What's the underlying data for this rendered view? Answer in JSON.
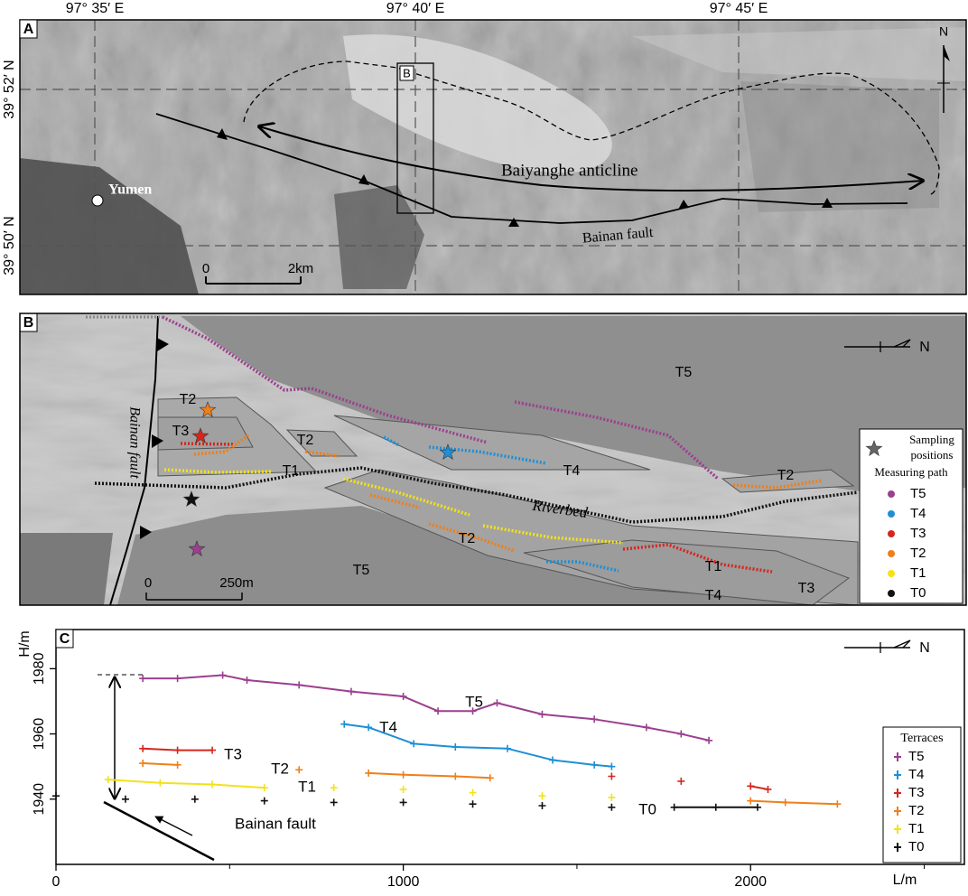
{
  "panel_a": {
    "label": "A",
    "lon_labels": [
      "97° 35′ E",
      "97° 40′ E",
      "97° 45′ E"
    ],
    "lat_labels": [
      "39° 52′ N",
      "39° 50′ N"
    ],
    "place": "Yumen",
    "box_label": "B",
    "anticline": "Baiyanghe anticline",
    "fault": "Bainan fault",
    "scale_labels": [
      "0",
      "2km"
    ],
    "north": "N"
  },
  "panel_b": {
    "label": "B",
    "fault": "Bainan fault",
    "riverbed": "Riverbed",
    "terrace_labels": [
      "T5",
      "T2",
      "T3",
      "T1",
      "T2",
      "T4",
      "T2",
      "T2",
      "T1",
      "T5",
      "T4",
      "T3"
    ],
    "scale_labels": [
      "0",
      "250m"
    ],
    "north": "N",
    "legend": {
      "sampling": [
        "Sampling",
        "positions"
      ],
      "measuring": "Measuring path",
      "items": [
        "T5",
        "T4",
        "T3",
        "T2",
        "T1",
        "T0"
      ]
    }
  },
  "chart_data": {
    "type": "scatter",
    "panel_label": "C",
    "x_label": "L/m",
    "y_label": "H/m",
    "legend_title": "Terraces",
    "legend": "right",
    "xlim": [
      0,
      2600
    ],
    "xticks": [
      0,
      1000,
      2000
    ],
    "ylim": [
      1920,
      1992
    ],
    "yticks": [
      1940,
      1960,
      1980
    ],
    "annotations": [
      "T5",
      "T4",
      "T3",
      "T2",
      "T1",
      "T0",
      "Bainan fault"
    ],
    "north": "N",
    "series": [
      {
        "name": "T5",
        "color": "#9b3f8f",
        "x": [
          250,
          350,
          480,
          550,
          700,
          850,
          1000,
          1100,
          1200,
          1270,
          1400,
          1550,
          1700,
          1800,
          1880
        ],
        "values": [
          1977,
          1977,
          1978,
          1976.5,
          1975,
          1973,
          1971.5,
          1967,
          1967,
          1969.5,
          1966,
          1964.5,
          1962,
          1960,
          1958
        ]
      },
      {
        "name": "T4",
        "color": "#1e8fd5",
        "x": [
          830,
          900,
          1030,
          1150,
          1300,
          1430,
          1550,
          1600
        ],
        "values": [
          1963,
          1962,
          1957,
          1956,
          1955.5,
          1952,
          1950.5,
          1950
        ]
      },
      {
        "name": "T3",
        "color": "#d6261e",
        "x": [
          250,
          350,
          450,
          1600,
          1800,
          2000,
          2050
        ],
        "values": [
          1955.5,
          1955,
          1955,
          1947,
          1945.5,
          1944,
          1943
        ]
      },
      {
        "name": "T2",
        "color": "#ef7f1a",
        "x": [
          250,
          350,
          700,
          900,
          1000,
          1150,
          1250,
          2000,
          2100,
          2250
        ],
        "values": [
          1951,
          1950.5,
          1949,
          1948,
          1947.5,
          1947,
          1946.5,
          1939.5,
          1939,
          1938.5
        ]
      },
      {
        "name": "T1",
        "color": "#f2e21a",
        "x": [
          150,
          300,
          450,
          600,
          800,
          1000,
          1200,
          1400,
          1600
        ],
        "values": [
          1946,
          1945,
          1944.5,
          1943.5,
          1943.5,
          1943,
          1942,
          1941,
          1940.5
        ]
      },
      {
        "name": "T0",
        "color": "#111111",
        "x": [
          0,
          200,
          400,
          600,
          800,
          1000,
          1200,
          1400,
          1600,
          1780,
          1900,
          2020
        ],
        "values": [
          1941,
          1940,
          1940,
          1939.5,
          1939,
          1939,
          1938.5,
          1938,
          1937.5,
          1937.5,
          1937.5,
          1937.5
        ]
      }
    ]
  }
}
